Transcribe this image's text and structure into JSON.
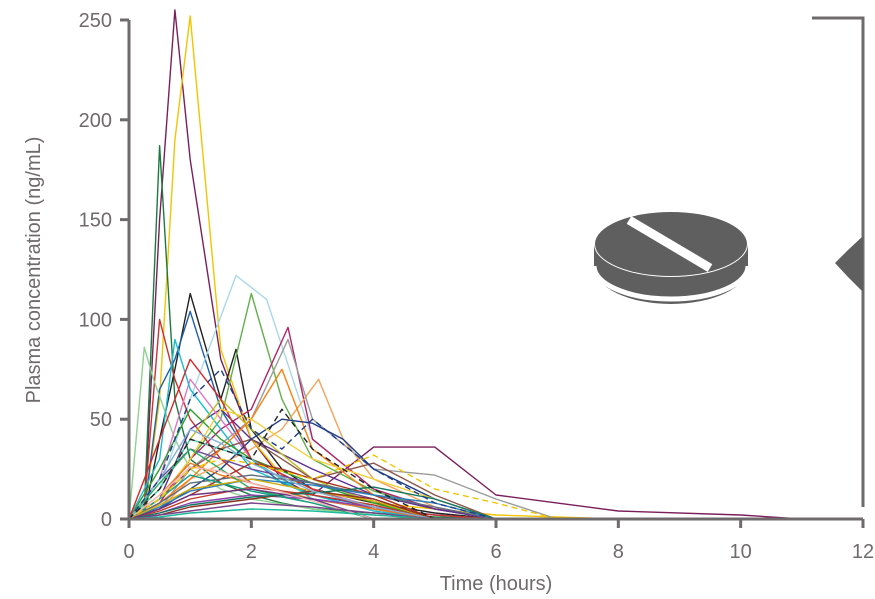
{
  "chart_data": {
    "type": "line",
    "title": "",
    "xlabel": "Time (hours)",
    "ylabel": "Plasma concentration (ng/mL)",
    "xlim": [
      0,
      12
    ],
    "ylim": [
      0,
      250
    ],
    "xticks": [
      0,
      2,
      4,
      6,
      8,
      10,
      12
    ],
    "yticks": [
      0,
      50,
      100,
      150,
      200,
      250
    ],
    "grid": false,
    "legend": "none",
    "annotation_icon": "tablet-pill-icon",
    "bracket": "right-side bracket with pointer",
    "series": [
      {
        "color": "#7b1e5c",
        "x": [
          0,
          0.25,
          0.5,
          0.75,
          1,
          1.5,
          2,
          2.5,
          3,
          4,
          5,
          6,
          8,
          10,
          11
        ],
        "y": [
          0,
          2,
          150,
          255,
          180,
          80,
          40,
          20,
          12,
          36,
          36,
          12,
          4,
          2,
          0
        ]
      },
      {
        "color": "#f2c500",
        "x": [
          0,
          0.25,
          0.5,
          0.75,
          1,
          1.5,
          2,
          2.5,
          3,
          4,
          5,
          6,
          8
        ],
        "y": [
          0,
          3,
          60,
          190,
          252,
          85,
          40,
          22,
          15,
          8,
          5,
          2,
          0
        ]
      },
      {
        "color": "#1b7a3e",
        "x": [
          0,
          0.25,
          0.5,
          0.75,
          1,
          1.5,
          2,
          2.5,
          3,
          4,
          5,
          6
        ],
        "y": [
          0,
          5,
          187,
          60,
          30,
          18,
          12,
          8,
          5,
          3,
          1,
          0
        ]
      },
      {
        "color": "#222222",
        "x": [
          0,
          0.25,
          0.5,
          0.75,
          1,
          1.5,
          1.75,
          2,
          2.5,
          3,
          4,
          5,
          6
        ],
        "y": [
          0,
          2,
          40,
          75,
          113,
          60,
          85,
          45,
          25,
          15,
          8,
          3,
          0
        ]
      },
      {
        "color": "#1f5fa8",
        "x": [
          0,
          0.25,
          0.5,
          0.75,
          1,
          1.5,
          2,
          2.5,
          3,
          4,
          5,
          6
        ],
        "y": [
          0,
          4,
          65,
          80,
          104,
          55,
          30,
          18,
          12,
          6,
          2,
          0
        ]
      },
      {
        "color": "#5fb04b",
        "x": [
          0,
          0.5,
          1,
          1.5,
          2,
          2.5,
          3,
          4,
          5,
          6
        ],
        "y": [
          0,
          10,
          30,
          50,
          113,
          60,
          30,
          14,
          5,
          0
        ]
      },
      {
        "color": "#a8d8ea",
        "x": [
          0,
          0.5,
          1,
          1.75,
          2.25,
          3,
          4,
          5,
          6
        ],
        "y": [
          0,
          15,
          60,
          122,
          110,
          40,
          15,
          5,
          0
        ]
      },
      {
        "color": "#b0246a",
        "x": [
          0,
          0.5,
          1,
          1.5,
          2,
          2.6,
          3,
          4,
          5,
          6
        ],
        "y": [
          0,
          8,
          30,
          45,
          55,
          96,
          40,
          15,
          5,
          0
        ]
      },
      {
        "color": "#f7a35c",
        "x": [
          0,
          0.5,
          1,
          2,
          2.5,
          3.1,
          3.5,
          4,
          5,
          6
        ],
        "y": [
          0,
          5,
          20,
          35,
          45,
          70,
          40,
          20,
          6,
          0
        ]
      },
      {
        "color": "#c83232",
        "x": [
          0,
          0.25,
          0.5,
          0.75,
          1,
          1.5,
          2,
          3,
          4,
          5,
          6
        ],
        "y": [
          0,
          6,
          100,
          70,
          50,
          30,
          18,
          10,
          5,
          2,
          0
        ]
      },
      {
        "color": "#8fd18f",
        "x": [
          0,
          0.25,
          0.4,
          0.75,
          1,
          1.5,
          2,
          3,
          4,
          5
        ],
        "y": [
          0,
          86,
          70,
          40,
          25,
          15,
          10,
          5,
          2,
          0
        ]
      },
      {
        "color": "#9b9b9b",
        "x": [
          0,
          0.5,
          1,
          2,
          2.6,
          3,
          4,
          5,
          6,
          7
        ],
        "y": [
          0,
          5,
          25,
          50,
          90,
          50,
          25,
          22,
          10,
          0
        ]
      },
      {
        "color": "#5c2d91",
        "x": [
          0,
          0.5,
          1,
          1.5,
          2,
          3,
          4,
          5,
          6
        ],
        "y": [
          0,
          10,
          45,
          55,
          40,
          25,
          12,
          5,
          0
        ]
      },
      {
        "color": "#e377c2",
        "x": [
          0,
          0.5,
          1,
          1.5,
          2,
          3,
          4,
          5
        ],
        "y": [
          0,
          20,
          70,
          50,
          30,
          15,
          6,
          0
        ]
      },
      {
        "color": "#17becf",
        "x": [
          0,
          0.5,
          0.75,
          1,
          1.5,
          2,
          3,
          4,
          5
        ],
        "y": [
          0,
          30,
          90,
          65,
          45,
          25,
          12,
          4,
          0
        ]
      },
      {
        "color": "#bcbd22",
        "x": [
          0,
          0.5,
          1,
          1.5,
          2,
          3,
          4,
          5
        ],
        "y": [
          0,
          15,
          40,
          60,
          45,
          20,
          8,
          0
        ]
      },
      {
        "color": "#8c564b",
        "x": [
          0,
          0.5,
          1,
          1.5,
          2,
          2.5,
          3,
          4,
          5,
          6
        ],
        "y": [
          0,
          10,
          25,
          35,
          40,
          30,
          20,
          28,
          12,
          0
        ]
      },
      {
        "color": "#ff7f0e",
        "x": [
          0,
          0.5,
          1,
          2,
          2.5,
          3,
          4,
          5
        ],
        "y": [
          0,
          8,
          20,
          50,
          75,
          35,
          12,
          0
        ]
      },
      {
        "color": "#2ca02c",
        "x": [
          0,
          0.5,
          1,
          1.5,
          2,
          3,
          4,
          5
        ],
        "y": [
          0,
          25,
          55,
          40,
          30,
          18,
          8,
          0
        ]
      },
      {
        "color": "#1f3c88",
        "x": [
          0,
          0.5,
          1,
          1.5,
          2,
          2.5,
          3,
          3.5,
          4,
          5,
          6
        ],
        "y": [
          0,
          5,
          15,
          25,
          40,
          50,
          48,
          40,
          25,
          10,
          0
        ]
      },
      {
        "color": "#d62728",
        "x": [
          0,
          0.5,
          1,
          1.5,
          2,
          3,
          4,
          5
        ],
        "y": [
          0,
          40,
          80,
          60,
          30,
          15,
          5,
          0
        ]
      },
      {
        "color": "#6b4c9a",
        "x": [
          0,
          0.5,
          1,
          1.5,
          2,
          3,
          4,
          5
        ],
        "y": [
          0,
          20,
          35,
          30,
          25,
          18,
          10,
          0
        ]
      },
      {
        "color": "#f4d03f",
        "x": [
          0,
          0.5,
          1,
          1.5,
          2,
          3,
          4,
          5,
          6
        ],
        "y": [
          0,
          10,
          30,
          55,
          50,
          30,
          20,
          10,
          0
        ]
      },
      {
        "color": "#48c9b0",
        "x": [
          0,
          0.5,
          1,
          1.5,
          2,
          2.5,
          3,
          4
        ],
        "y": [
          0,
          15,
          40,
          35,
          30,
          20,
          10,
          0
        ]
      },
      {
        "color": "#a93226",
        "x": [
          0,
          0.5,
          1,
          1.5,
          2,
          2.5,
          3,
          4,
          5
        ],
        "y": [
          0,
          5,
          12,
          20,
          28,
          25,
          20,
          12,
          0
        ]
      },
      {
        "color": "#5d6d7e",
        "x": [
          0,
          0.5,
          1,
          2,
          3,
          4,
          5,
          6
        ],
        "y": [
          0,
          8,
          18,
          22,
          18,
          12,
          6,
          0
        ]
      },
      {
        "color": "#e67e22",
        "x": [
          0,
          0.5,
          1,
          1.5,
          2,
          3,
          4,
          5
        ],
        "y": [
          0,
          12,
          28,
          22,
          18,
          10,
          5,
          0
        ]
      },
      {
        "color": "#27ae60",
        "x": [
          0,
          0.5,
          1,
          1.5,
          2,
          3,
          4
        ],
        "y": [
          0,
          18,
          35,
          25,
          15,
          8,
          0
        ]
      },
      {
        "color": "#2980b9",
        "x": [
          0,
          0.5,
          1,
          2,
          3,
          4,
          5,
          6
        ],
        "y": [
          0,
          6,
          14,
          20,
          17,
          12,
          8,
          0
        ]
      },
      {
        "color": "#c0392b",
        "x": [
          0,
          0.5,
          1,
          2,
          3,
          4,
          5
        ],
        "y": [
          0,
          4,
          10,
          16,
          12,
          7,
          0
        ]
      },
      {
        "color": "#8e44ad",
        "x": [
          0,
          0.5,
          1,
          2,
          3,
          4,
          5
        ],
        "y": [
          0,
          3,
          8,
          12,
          10,
          6,
          0
        ]
      },
      {
        "color": "#16a085",
        "x": [
          0,
          0.5,
          1,
          1.5,
          2,
          3,
          4
        ],
        "y": [
          0,
          10,
          22,
          18,
          14,
          8,
          0
        ]
      },
      {
        "color": "#d4ac0d",
        "x": [
          0,
          0.5,
          1,
          2,
          3,
          4,
          5
        ],
        "y": [
          0,
          7,
          15,
          20,
          14,
          9,
          0
        ]
      },
      {
        "color": "#943126",
        "x": [
          0,
          0.5,
          1,
          2,
          3,
          4,
          5
        ],
        "y": [
          0,
          2,
          6,
          10,
          14,
          10,
          0
        ]
      },
      {
        "color": "#117864",
        "x": [
          0,
          0.5,
          1,
          2,
          3,
          4,
          5,
          6
        ],
        "y": [
          0,
          3,
          7,
          11,
          13,
          16,
          10,
          0
        ]
      },
      {
        "color": "#6c3483",
        "x": [
          0,
          0.5,
          1,
          2,
          3,
          4
        ],
        "y": [
          0,
          5,
          12,
          15,
          10,
          0
        ]
      },
      {
        "color": "#7fb3d5",
        "x": [
          0,
          0.5,
          1,
          1.5,
          2,
          3,
          4,
          5
        ],
        "y": [
          0,
          20,
          45,
          38,
          28,
          14,
          6,
          0
        ]
      },
      {
        "color": "#f5b7b1",
        "x": [
          0,
          0.5,
          1,
          1.5,
          2,
          3,
          4
        ],
        "y": [
          0,
          12,
          26,
          24,
          18,
          9,
          0
        ]
      },
      {
        "color": "#76448a",
        "x": [
          0,
          0.5,
          1,
          1.5,
          2,
          3,
          4,
          5
        ],
        "y": [
          0,
          2,
          4,
          6,
          8,
          6,
          3,
          0
        ]
      },
      {
        "color": "#1abc9c",
        "x": [
          0,
          0.5,
          1,
          2,
          3,
          4,
          5
        ],
        "y": [
          0,
          1,
          3,
          5,
          4,
          2,
          0
        ]
      },
      {
        "color": "#1f3c88",
        "dash": true,
        "x": [
          0,
          0.5,
          1,
          1.5,
          2,
          2.5,
          3,
          4,
          5,
          6
        ],
        "y": [
          0,
          20,
          60,
          75,
          45,
          35,
          50,
          25,
          8,
          0
        ]
      },
      {
        "color": "#f2c500",
        "dash": true,
        "x": [
          0,
          0.5,
          1,
          1.5,
          2,
          3,
          4,
          5,
          6,
          7
        ],
        "y": [
          0,
          10,
          25,
          30,
          28,
          20,
          32,
          15,
          8,
          0
        ]
      },
      {
        "color": "#222222",
        "dash": true,
        "x": [
          0,
          0.5,
          1,
          1.5,
          2,
          2.5,
          3,
          4,
          5
        ],
        "y": [
          0,
          15,
          40,
          35,
          30,
          55,
          35,
          15,
          0
        ]
      }
    ]
  }
}
